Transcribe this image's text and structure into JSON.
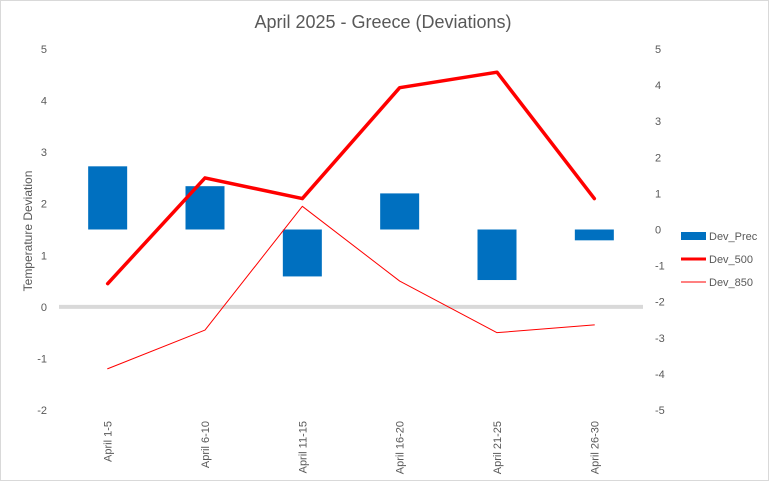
{
  "chart_data": {
    "type": "bar",
    "title": "April 2025 - Greece (Deviations)",
    "ylabel": "Temperature Deviation",
    "categories": [
      "April 1-5",
      "April 6-10",
      "April 11-15",
      "April 16-20",
      "April 21-25",
      "April 26-30"
    ],
    "y_left": {
      "ticks": [
        -2,
        -1,
        0,
        1,
        2,
        3,
        4,
        5
      ],
      "ylim": [
        -2,
        5
      ]
    },
    "y_right": {
      "ticks": [
        -5,
        -4,
        -3,
        -2,
        -1,
        0,
        1,
        2,
        3,
        4,
        5
      ],
      "ylim": [
        -5,
        5
      ]
    },
    "series": [
      {
        "name": "Dev_Prec",
        "type": "bar",
        "axis": "right",
        "color": "#0070c0",
        "values": [
          1.75,
          1.2,
          -1.3,
          1.0,
          -1.4,
          -0.3
        ]
      },
      {
        "name": "Dev_500",
        "type": "line",
        "axis": "left",
        "color": "#ff0000",
        "weight": "thick",
        "values": [
          0.45,
          2.5,
          2.1,
          4.25,
          4.55,
          2.1
        ]
      },
      {
        "name": "Dev_850",
        "type": "line",
        "axis": "left",
        "color": "#ff0000",
        "weight": "thin",
        "values": [
          -1.2,
          -0.45,
          1.95,
          0.5,
          -0.5,
          -0.35
        ]
      }
    ],
    "zero_line": true,
    "grid": false,
    "legend_position": "right"
  }
}
